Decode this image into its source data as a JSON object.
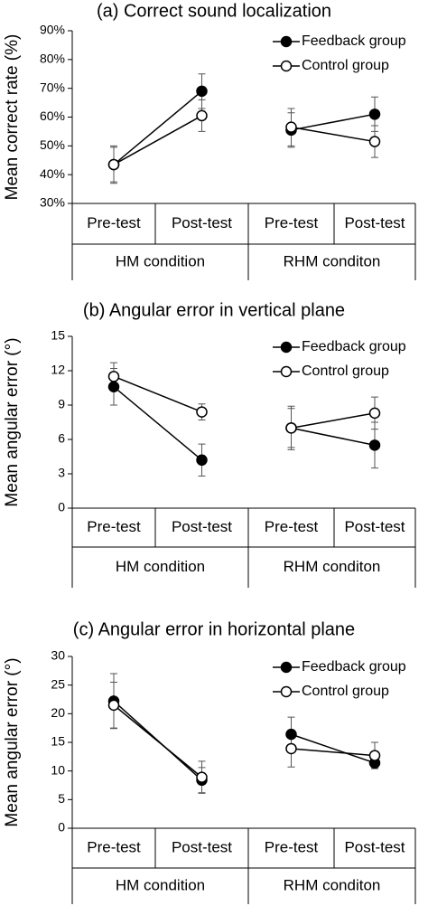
{
  "chart_data": [
    {
      "type": "line",
      "title": "(a) Correct sound localization",
      "y_label": "Mean correct rate (%)",
      "categories": [
        "Pre-test",
        "Post-test",
        "Pre-test",
        "Post-test"
      ],
      "groups": [
        "HM condition",
        "RHM conditon"
      ],
      "ylim": [
        30,
        90
      ],
      "yticks": [
        {
          "value": 30,
          "label": "30%"
        },
        {
          "value": 40,
          "label": "40%"
        },
        {
          "value": 50,
          "label": "50%"
        },
        {
          "value": 60,
          "label": "60%"
        },
        {
          "value": 70,
          "label": "70%"
        },
        {
          "value": 80,
          "label": "80%"
        },
        {
          "value": 90,
          "label": "90%"
        }
      ],
      "legend": "upper right",
      "series": [
        {
          "name": "Feedback group",
          "color": "#000000",
          "marker_fill": "#000000",
          "values": [
            43.5,
            69,
            55.5,
            61
          ],
          "errors": [
            6.5,
            6,
            6,
            6
          ]
        },
        {
          "name": "Control group",
          "color": "#000000",
          "marker_fill": "#ffffff",
          "values": [
            43.5,
            60.5,
            56.5,
            51.5
          ],
          "errors": [
            6,
            5.5,
            6.5,
            5.5
          ]
        }
      ]
    },
    {
      "type": "line",
      "title": "(b) Angular error in vertical plane",
      "y_label": "Mean angular error (°)",
      "categories": [
        "Pre-test",
        "Post-test",
        "Pre-test",
        "Post-test"
      ],
      "groups": [
        "HM condition",
        "RHM conditon"
      ],
      "ylim": [
        0,
        15
      ],
      "yticks": [
        0,
        3,
        6,
        9,
        12,
        15
      ],
      "legend": "upper right",
      "series": [
        {
          "name": "Feedback group",
          "color": "#000000",
          "marker_fill": "#000000",
          "values": [
            10.6,
            4.2,
            7.0,
            5.5
          ],
          "errors": [
            1.6,
            1.4,
            1.9,
            2.0
          ]
        },
        {
          "name": "Control group",
          "color": "#000000",
          "marker_fill": "#ffffff",
          "values": [
            11.5,
            8.4,
            7.0,
            8.3
          ],
          "errors": [
            1.2,
            0.7,
            1.7,
            1.4
          ]
        }
      ]
    },
    {
      "type": "line",
      "title": "(c) Angular error in horizontal plane",
      "y_label": "Mean angular error (°)",
      "categories": [
        "Pre-test",
        "Post-test",
        "Pre-test",
        "Post-test"
      ],
      "groups": [
        "HM condition",
        "RHM conditon"
      ],
      "ylim": [
        0,
        30
      ],
      "yticks": [
        0,
        5,
        10,
        15,
        20,
        25,
        30
      ],
      "legend": "upper right",
      "series": [
        {
          "name": "Feedback group",
          "color": "#000000",
          "marker_fill": "#000000",
          "values": [
            22.2,
            8.4,
            16.4,
            11.4
          ],
          "errors": [
            4.8,
            2.2,
            3.0,
            0.8
          ]
        },
        {
          "name": "Control group",
          "color": "#000000",
          "marker_fill": "#ffffff",
          "values": [
            21.5,
            8.9,
            13.9,
            12.7
          ],
          "errors": [
            4.0,
            2.8,
            3.2,
            2.3
          ]
        }
      ]
    }
  ]
}
